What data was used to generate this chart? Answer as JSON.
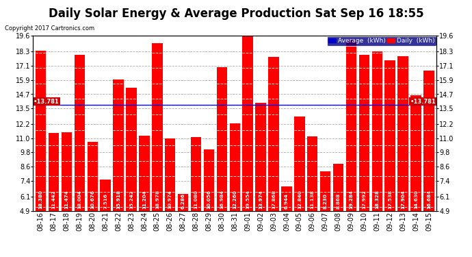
{
  "title": "Daily Solar Energy & Average Production Sat Sep 16 18:55",
  "copyright": "Copyright 2017 Cartronics.com",
  "categories": [
    "08-16",
    "08-17",
    "08-18",
    "08-19",
    "08-20",
    "08-21",
    "08-22",
    "08-23",
    "08-24",
    "08-25",
    "08-26",
    "08-27",
    "08-28",
    "08-29",
    "08-30",
    "08-31",
    "09-01",
    "09-02",
    "09-03",
    "09-04",
    "09-05",
    "09-06",
    "09-07",
    "09-08",
    "09-09",
    "09-10",
    "09-11",
    "09-12",
    "09-13",
    "09-14",
    "09-15"
  ],
  "values": [
    18.38,
    11.442,
    11.474,
    18.004,
    10.676,
    7.516,
    15.918,
    15.242,
    11.204,
    18.978,
    10.974,
    6.286,
    11.08,
    10.056,
    16.984,
    12.26,
    19.554,
    13.974,
    17.868,
    6.944,
    12.84,
    11.138,
    8.23,
    8.868,
    19.284,
    17.992,
    18.328,
    17.538,
    17.904,
    14.63,
    16.684
  ],
  "average": 13.781,
  "bar_color": "#ff0000",
  "bar_edge_color": "#cc0000",
  "average_line_color": "#0000ff",
  "background_color": "#ffffff",
  "plot_bg_color": "#ffffff",
  "grid_color": "#999999",
  "ylim": [
    4.9,
    19.6
  ],
  "yticks": [
    4.9,
    6.1,
    7.4,
    8.6,
    9.8,
    11.0,
    12.2,
    13.5,
    14.7,
    15.9,
    17.1,
    18.3,
    19.6
  ],
  "title_fontsize": 12,
  "tick_fontsize": 7,
  "avg_label": "13.781",
  "legend_avg_color": "#0000cc",
  "legend_daily_color": "#ff0000",
  "legend_avg_text": "Average  (kWh)",
  "legend_daily_text": "Daily  (kWh)"
}
